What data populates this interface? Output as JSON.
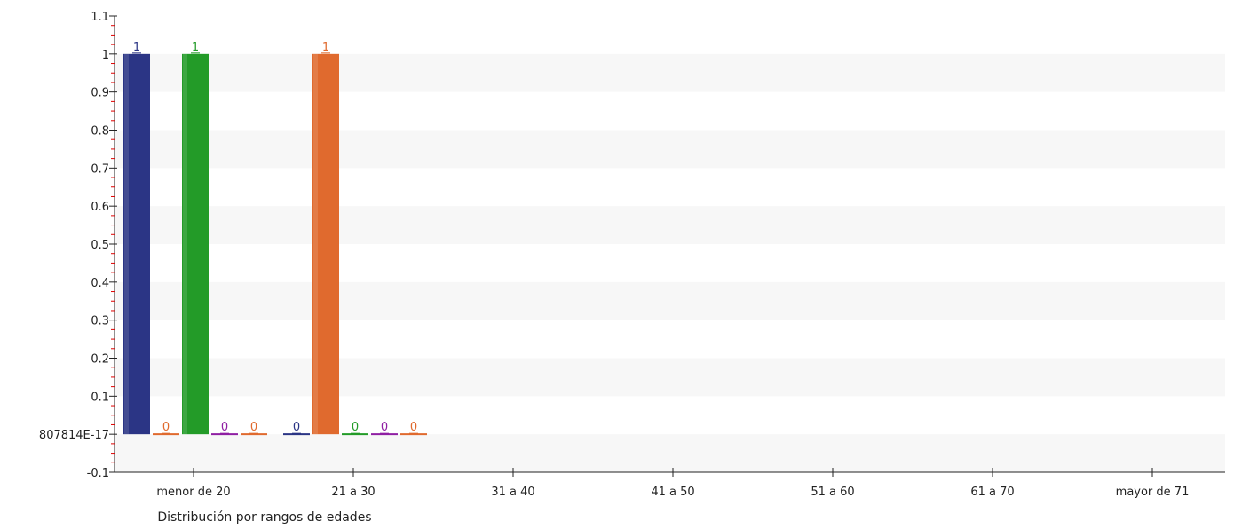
{
  "chart_data": {
    "type": "bar",
    "xlabel": "Distribución por rangos de edades",
    "ylabel": "",
    "ylim": [
      -0.1,
      1.1
    ],
    "grid": "horizontal bands",
    "categories": [
      "menor de 20",
      "21 a 30",
      "31 a 40",
      "41 a 50",
      "51 a 60",
      "61 a 70",
      "mayor de 71"
    ],
    "y_ticks": [
      {
        "value": -0.1,
        "label": "-0.1"
      },
      {
        "value": 0,
        "label": "807814E-17"
      },
      {
        "value": 0.1,
        "label": "0.1"
      },
      {
        "value": 0.2,
        "label": "0.2"
      },
      {
        "value": 0.3,
        "label": "0.3"
      },
      {
        "value": 0.4,
        "label": "0.4"
      },
      {
        "value": 0.5,
        "label": "0.5"
      },
      {
        "value": 0.6,
        "label": "0.6"
      },
      {
        "value": 0.7,
        "label": "0.7"
      },
      {
        "value": 0.8,
        "label": "0.8"
      },
      {
        "value": 0.9,
        "label": "0.9"
      },
      {
        "value": 1.0,
        "label": "1"
      },
      {
        "value": 1.1,
        "label": "1.1"
      }
    ],
    "series": [
      {
        "color": "#2b3585",
        "values": [
          1,
          0,
          null,
          null,
          null,
          null,
          null
        ]
      },
      {
        "color": "#e06a2e",
        "values": [
          0,
          1,
          null,
          null,
          null,
          null,
          null
        ]
      },
      {
        "color": "#239b28",
        "values": [
          1,
          0,
          null,
          null,
          null,
          null,
          null
        ]
      },
      {
        "color": "#8f1fa3",
        "values": [
          0,
          0,
          null,
          null,
          null,
          null,
          null
        ]
      },
      {
        "color": "#e06a2e",
        "values": [
          0,
          0,
          null,
          null,
          null,
          null,
          null
        ]
      }
    ]
  }
}
